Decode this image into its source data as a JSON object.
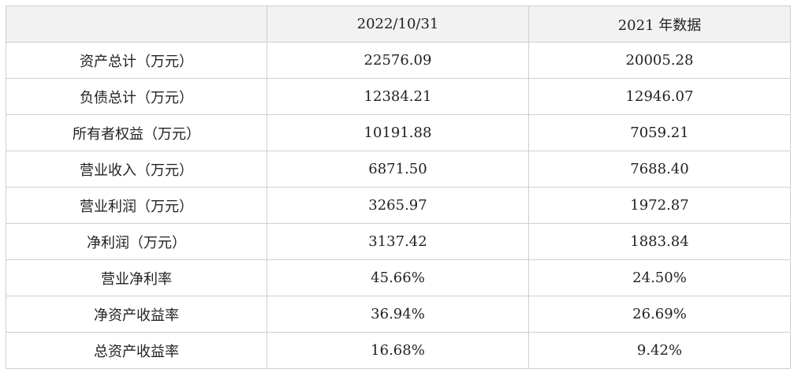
{
  "table": {
    "columns": [
      "2022/10/31",
      "2021 年数据"
    ],
    "rows": [
      [
        "资产总计（万元）",
        "22576.09",
        "20005.28"
      ],
      [
        "负债总计（万元）",
        "12384.21",
        "12946.07"
      ],
      [
        "所有者权益（万元）",
        "10191.88",
        "7059.21"
      ],
      [
        "营业收入（万元）",
        "6871.50",
        "7688.40"
      ],
      [
        "营业利润（万元）",
        "3265.97",
        "1972.87"
      ],
      [
        "净利润（万元）",
        "3137.42",
        "1883.84"
      ],
      [
        "营业净利率",
        "45.66%",
        "24.50%"
      ],
      [
        "净资产收益率",
        "36.94%",
        "26.69%"
      ],
      [
        "总资产收益率",
        "16.68%",
        "9.42%"
      ]
    ]
  }
}
